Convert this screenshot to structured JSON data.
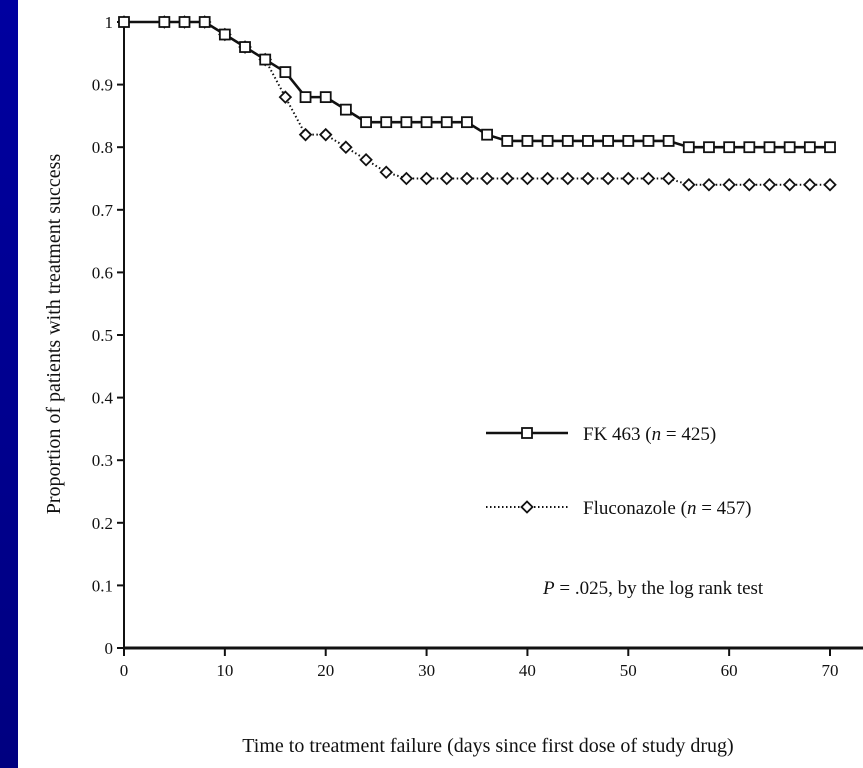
{
  "chart_data": {
    "type": "line",
    "xlabel": "Time to treatment failure (days since first dose of study drug)",
    "ylabel": "Proportion of patients with treatment success",
    "xlim": [
      0,
      70
    ],
    "ylim": [
      0,
      1
    ],
    "x_ticks": [
      "0",
      "10",
      "20",
      "30",
      "40",
      "50",
      "60",
      "70"
    ],
    "y_ticks": [
      "0",
      "0.1",
      "0.2",
      "0.3",
      "0.4",
      "0.5",
      "0.6",
      "0.7",
      "0.8",
      "0.9",
      "1"
    ],
    "grid": false,
    "legend_position": "lower-right",
    "annotation": {
      "prefix": "P",
      "text": " = .025, by the log rank test"
    },
    "series": [
      {
        "legend_main": "FK 463 (",
        "legend_n": "n",
        "legend_rest": " = 425)",
        "marker": "square",
        "line_style": "solid",
        "x": [
          0,
          4,
          6,
          8,
          10,
          12,
          14,
          16,
          18,
          20,
          22,
          24,
          26,
          28,
          30,
          32,
          34,
          36,
          38,
          40,
          42,
          44,
          46,
          48,
          50,
          52,
          54,
          56,
          58,
          60,
          62,
          64,
          66,
          68,
          70
        ],
        "y": [
          1,
          1,
          1,
          1,
          0.98,
          0.96,
          0.94,
          0.92,
          0.88,
          0.88,
          0.86,
          0.84,
          0.84,
          0.84,
          0.84,
          0.84,
          0.84,
          0.82,
          0.81,
          0.81,
          0.81,
          0.81,
          0.81,
          0.81,
          0.81,
          0.81,
          0.81,
          0.8,
          0.8,
          0.8,
          0.8,
          0.8,
          0.8,
          0.8,
          0.8
        ]
      },
      {
        "legend_main": "Fluconazole (",
        "legend_n": "n",
        "legend_rest": " = 457)",
        "marker": "diamond",
        "line_style": "dotted",
        "x": [
          0,
          4,
          6,
          8,
          10,
          12,
          14,
          16,
          18,
          20,
          22,
          24,
          26,
          28,
          30,
          32,
          34,
          36,
          38,
          40,
          42,
          44,
          46,
          48,
          50,
          52,
          54,
          56,
          58,
          60,
          62,
          64,
          66,
          68,
          70
        ],
        "y": [
          1,
          1,
          1,
          1,
          0.98,
          0.96,
          0.94,
          0.88,
          0.82,
          0.82,
          0.8,
          0.78,
          0.76,
          0.75,
          0.75,
          0.75,
          0.75,
          0.75,
          0.75,
          0.75,
          0.75,
          0.75,
          0.75,
          0.75,
          0.75,
          0.75,
          0.75,
          0.74,
          0.74,
          0.74,
          0.74,
          0.74,
          0.74,
          0.74,
          0.74
        ]
      }
    ]
  }
}
